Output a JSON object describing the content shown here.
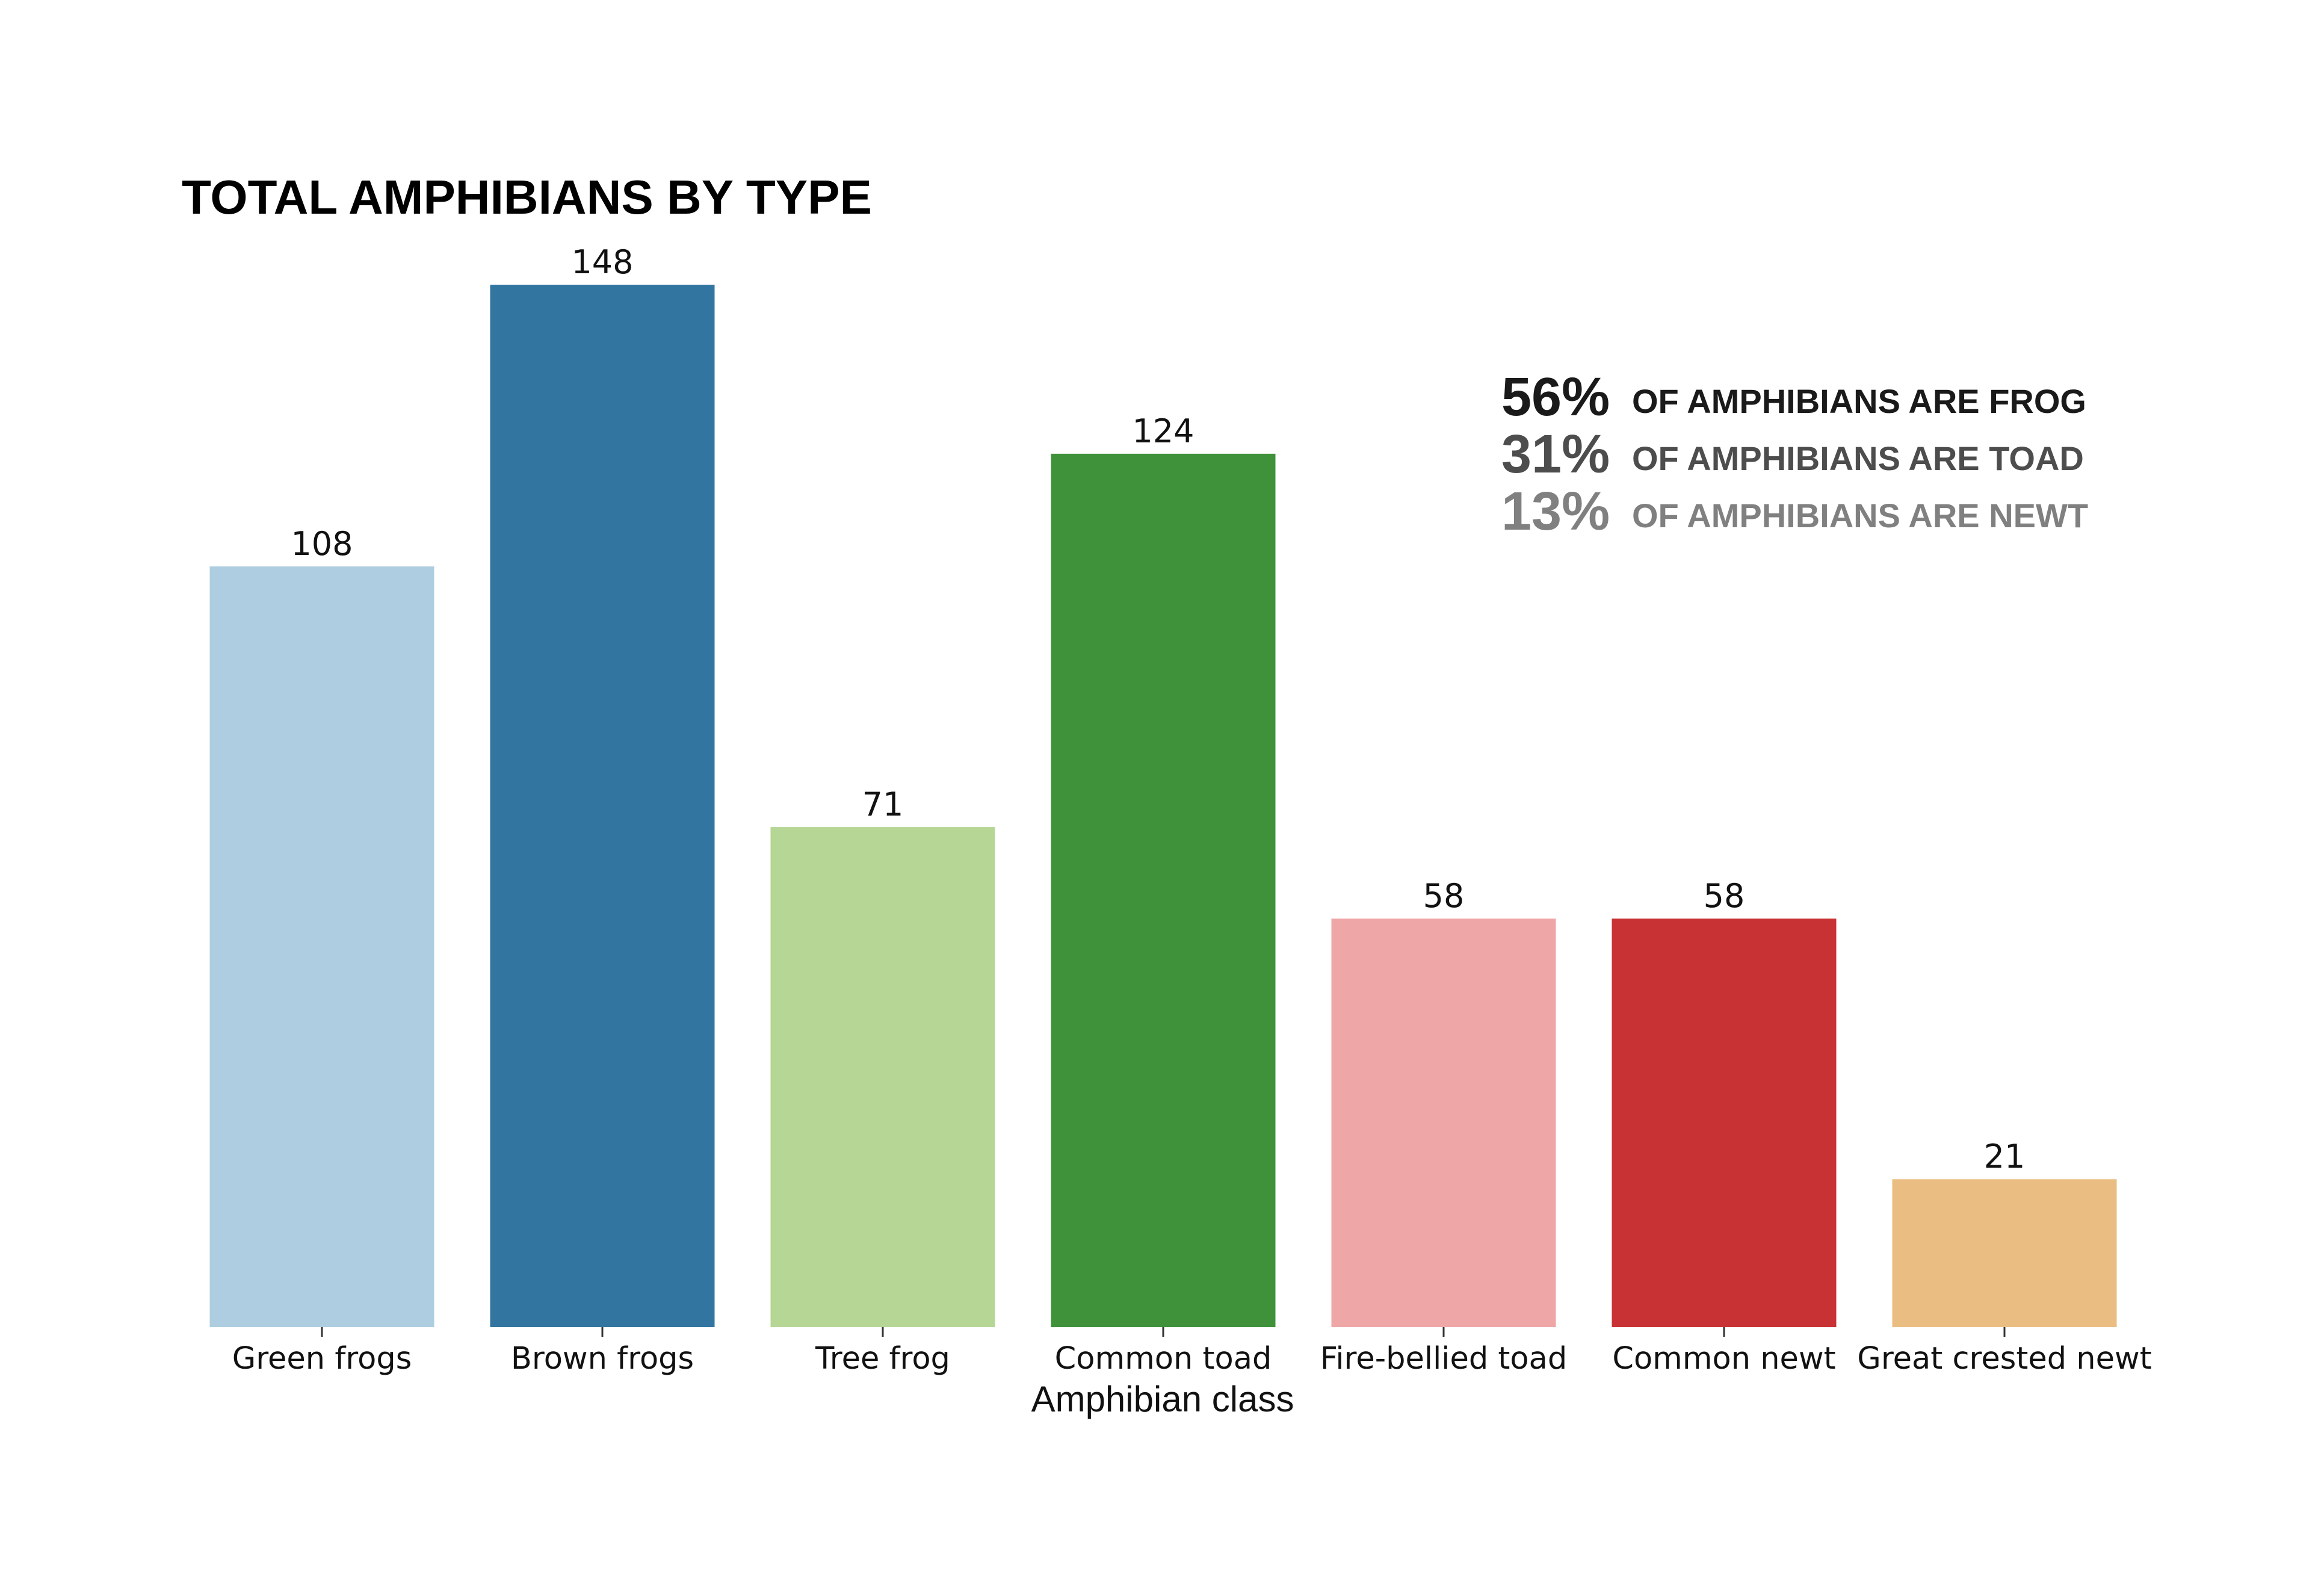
{
  "chart_data": {
    "type": "bar",
    "title": "TOTAL AMPHIBIANS BY TYPE",
    "xlabel": "Amphibian class",
    "ylabel": "",
    "ylim": [
      0,
      148
    ],
    "grid": false,
    "categories": [
      "Green frogs",
      "Brown frogs",
      "Tree frog",
      "Common toad",
      "Fire-bellied toad",
      "Common newt",
      "Great crested newt"
    ],
    "values": [
      108,
      148,
      71,
      124,
      58,
      58,
      21
    ],
    "colors": [
      "#aecde0",
      "#3275a1",
      "#b5d695",
      "#3f923a",
      "#efa6a6",
      "#c93235",
      "#eabe82"
    ],
    "annotations": [
      {
        "pct": "56%",
        "text": "OF AMPHIBIANS ARE FROG",
        "color": "#1a1a1a"
      },
      {
        "pct": "31%",
        "text": "OF AMPHIBIANS ARE TOAD",
        "color": "#4d4d4d"
      },
      {
        "pct": "13%",
        "text": "OF AMPHIBIANS ARE NEWT",
        "color": "#808080"
      }
    ]
  }
}
